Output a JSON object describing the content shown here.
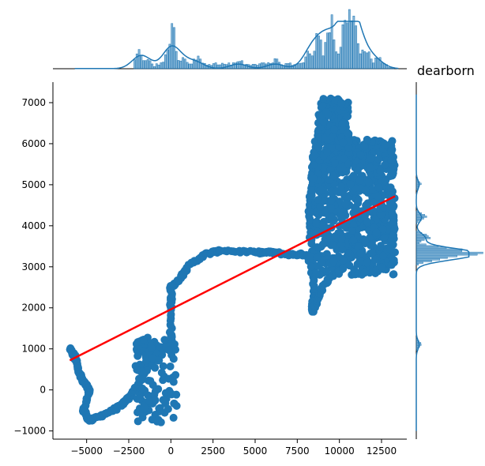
{
  "chart_data": {
    "type": "scatter",
    "title": "dearborn",
    "title_placement": "top-right, above marginal y-histogram",
    "xlabel": "",
    "ylabel": "",
    "xlim": [
      -7000,
      14000
    ],
    "ylim": [
      -1200,
      7500
    ],
    "x_ticks": [
      -5000,
      -2500,
      0,
      2500,
      5000,
      7500,
      10000,
      12500
    ],
    "x_tick_labels": [
      "−5000",
      "−2500",
      "0",
      "2500",
      "5000",
      "7500",
      "10000",
      "12500"
    ],
    "y_ticks": [
      -1000,
      0,
      1000,
      2000,
      3000,
      4000,
      5000,
      6000,
      7000
    ],
    "y_tick_labels": [
      "−1000",
      "0",
      "1000",
      "2000",
      "3000",
      "4000",
      "5000",
      "6000",
      "7000"
    ],
    "grid": false,
    "layout": "jointplot with marginal histograms (top: x, right: y) and KDE curves",
    "colors": {
      "points": "#1f77b4",
      "regression": "#ff0000",
      "hist_fill": "#1f77b4",
      "kde": "#1f77b4"
    },
    "series": [
      {
        "kind": "scatter",
        "points_description": "dense trajectory of GPS-like coordinates",
        "path": [
          [
            -6000,
            1000
          ],
          [
            -5700,
            800
          ],
          [
            -5500,
            500
          ],
          [
            -5200,
            200
          ],
          [
            -4800,
            0
          ],
          [
            -5200,
            -500
          ],
          [
            -4800,
            -750
          ],
          [
            -4000,
            -600
          ],
          [
            -3000,
            -400
          ],
          [
            -2500,
            -200
          ],
          [
            -2000,
            100
          ],
          [
            -1500,
            500
          ],
          [
            -1000,
            800
          ],
          [
            -500,
            1000
          ],
          [
            0,
            1100
          ],
          [
            0,
            2000
          ],
          [
            0,
            2500
          ],
          [
            500,
            2700
          ],
          [
            1000,
            3000
          ],
          [
            2000,
            3300
          ],
          [
            3000,
            3400
          ],
          [
            5000,
            3350
          ],
          [
            6000,
            3350
          ],
          [
            7000,
            3300
          ],
          [
            8000,
            3300
          ],
          [
            8500,
            3000
          ],
          [
            8500,
            2300
          ],
          [
            8400,
            1900
          ],
          [
            9000,
            2500
          ],
          [
            10000,
            3000
          ],
          [
            11000,
            3500
          ],
          [
            12000,
            3700
          ],
          [
            13000,
            3800
          ],
          [
            13200,
            4200
          ],
          [
            12500,
            4500
          ],
          [
            12000,
            5500
          ],
          [
            11500,
            6000
          ],
          [
            11000,
            5500
          ],
          [
            10500,
            6200
          ],
          [
            10000,
            6800
          ],
          [
            9500,
            7100
          ],
          [
            9000,
            6500
          ],
          [
            8500,
            5500
          ],
          [
            8200,
            4500
          ],
          [
            8300,
            3500
          ]
        ],
        "clusters": [
          {
            "x": [
              8300,
              13300
            ],
            "y": [
              2800,
              6100
            ],
            "note": "dense block"
          },
          {
            "x": [
              8700,
              10600
            ],
            "y": [
              5500,
              7100
            ],
            "note": "upper lobe"
          },
          {
            "x": [
              -2100,
              400
            ],
            "y": [
              -800,
              1300
            ],
            "note": "left segment"
          }
        ]
      },
      {
        "kind": "regression_line",
        "x": [
          -6000,
          13300
        ],
        "y": [
          720,
          4720
        ]
      }
    ],
    "x_histogram": {
      "peaks": [
        {
          "x": -1900,
          "relative_height": 0.26
        },
        {
          "x": -1500,
          "relative_height": 0.18
        },
        {
          "x": 0,
          "relative_height": 0.62
        },
        {
          "x": 700,
          "relative_height": 0.18
        },
        {
          "x": 1500,
          "relative_height": 0.18
        },
        {
          "x": 4000,
          "relative_height": 0.14
        },
        {
          "x": 6200,
          "relative_height": 0.14
        },
        {
          "x": 8200,
          "relative_height": 0.32
        },
        {
          "x": 8700,
          "relative_height": 0.52
        },
        {
          "x": 9400,
          "relative_height": 0.82
        },
        {
          "x": 10300,
          "relative_height": 0.72
        },
        {
          "x": 10600,
          "relative_height": 0.95
        },
        {
          "x": 10900,
          "relative_height": 0.6
        },
        {
          "x": 11500,
          "relative_height": 0.35
        },
        {
          "x": 12200,
          "relative_height": 0.2
        }
      ]
    },
    "y_histogram": {
      "peaks": [
        {
          "y": 3300,
          "relative_height": 1.0
        },
        {
          "y": 3400,
          "relative_height": 0.7
        },
        {
          "y": 3200,
          "relative_height": 0.45
        },
        {
          "y": 3700,
          "relative_height": 0.25
        },
        {
          "y": 4200,
          "relative_height": 0.15
        },
        {
          "y": 5000,
          "relative_height": 0.08
        },
        {
          "y": 1100,
          "relative_height": 0.08
        }
      ]
    }
  }
}
